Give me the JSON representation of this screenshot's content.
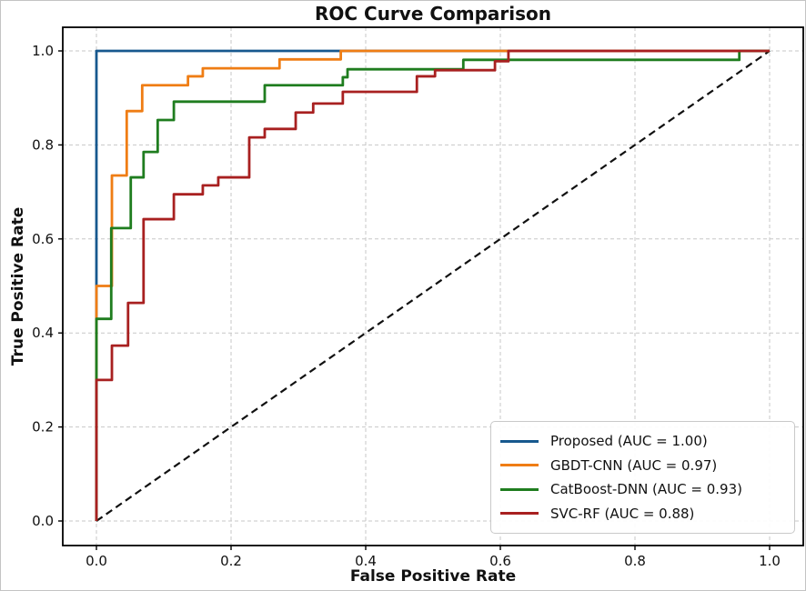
{
  "chart_data": {
    "type": "line",
    "subtype": "roc-step-curves",
    "title": "ROC Curve Comparison",
    "xlabel": "False Positive Rate",
    "ylabel": "True Positive Rate",
    "xlim": [
      0,
      1
    ],
    "ylim": [
      0,
      1
    ],
    "grid": true,
    "grid_style": "dashed",
    "legend_position": "lower right",
    "xticks": [
      "0.0",
      "0.2",
      "0.4",
      "0.6",
      "0.8",
      "1.0"
    ],
    "yticks": [
      "0.0",
      "0.2",
      "0.4",
      "0.6",
      "0.8",
      "1.0"
    ],
    "xtick_values": [
      0,
      0.2,
      0.4,
      0.6,
      0.8,
      1.0
    ],
    "ytick_values": [
      0,
      0.2,
      0.4,
      0.6,
      0.8,
      1.0
    ],
    "series": [
      {
        "name": "Proposed",
        "auc": "1.00",
        "legend_label": "Proposed (AUC = 1.00)",
        "color": "#17588e",
        "points": [
          [
            0,
            0
          ],
          [
            0,
            1
          ],
          [
            1,
            1
          ]
        ]
      },
      {
        "name": "GBDT-CNN",
        "auc": "0.97",
        "legend_label": "GBDT-CNN (AUC = 0.97)",
        "color": "#ef7d14",
        "points": [
          [
            0,
            0
          ],
          [
            0,
            0.5
          ],
          [
            0.023,
            0.5
          ],
          [
            0.023,
            0.735
          ],
          [
            0.045,
            0.735
          ],
          [
            0.045,
            0.872
          ],
          [
            0.068,
            0.872
          ],
          [
            0.068,
            0.927
          ],
          [
            0.136,
            0.927
          ],
          [
            0.136,
            0.946
          ],
          [
            0.158,
            0.946
          ],
          [
            0.158,
            0.963
          ],
          [
            0.272,
            0.963
          ],
          [
            0.272,
            0.982
          ],
          [
            0.363,
            0.982
          ],
          [
            0.363,
            1
          ],
          [
            1,
            1
          ]
        ]
      },
      {
        "name": "CatBoost-DNN",
        "auc": "0.93",
        "legend_label": "CatBoost-DNN (AUC = 0.93)",
        "color": "#1f7d1f",
        "points": [
          [
            0,
            0
          ],
          [
            0,
            0.43
          ],
          [
            0.022,
            0.43
          ],
          [
            0.022,
            0.623
          ],
          [
            0.051,
            0.623
          ],
          [
            0.051,
            0.731
          ],
          [
            0.07,
            0.731
          ],
          [
            0.07,
            0.785
          ],
          [
            0.091,
            0.785
          ],
          [
            0.091,
            0.853
          ],
          [
            0.115,
            0.853
          ],
          [
            0.115,
            0.892
          ],
          [
            0.25,
            0.892
          ],
          [
            0.25,
            0.927
          ],
          [
            0.366,
            0.927
          ],
          [
            0.366,
            0.944
          ],
          [
            0.373,
            0.944
          ],
          [
            0.373,
            0.961
          ],
          [
            0.545,
            0.961
          ],
          [
            0.545,
            0.981
          ],
          [
            0.955,
            0.981
          ],
          [
            0.955,
            1
          ],
          [
            1,
            1
          ]
        ]
      },
      {
        "name": "SVC-RF",
        "auc": "0.88",
        "legend_label": "SVC-RF (AUC = 0.88)",
        "color": "#a82020",
        "points": [
          [
            0,
            0
          ],
          [
            0,
            0.3
          ],
          [
            0.023,
            0.3
          ],
          [
            0.023,
            0.373
          ],
          [
            0.047,
            0.373
          ],
          [
            0.047,
            0.464
          ],
          [
            0.07,
            0.464
          ],
          [
            0.07,
            0.642
          ],
          [
            0.115,
            0.642
          ],
          [
            0.115,
            0.695
          ],
          [
            0.158,
            0.695
          ],
          [
            0.158,
            0.714
          ],
          [
            0.181,
            0.714
          ],
          [
            0.181,
            0.731
          ],
          [
            0.227,
            0.731
          ],
          [
            0.227,
            0.816
          ],
          [
            0.25,
            0.816
          ],
          [
            0.25,
            0.834
          ],
          [
            0.296,
            0.834
          ],
          [
            0.296,
            0.869
          ],
          [
            0.322,
            0.869
          ],
          [
            0.322,
            0.888
          ],
          [
            0.366,
            0.888
          ],
          [
            0.366,
            0.913
          ],
          [
            0.476,
            0.913
          ],
          [
            0.476,
            0.946
          ],
          [
            0.503,
            0.946
          ],
          [
            0.503,
            0.959
          ],
          [
            0.592,
            0.959
          ],
          [
            0.592,
            0.978
          ],
          [
            0.612,
            0.978
          ],
          [
            0.612,
            1
          ],
          [
            1,
            1
          ]
        ]
      }
    ],
    "reference_line": {
      "name": "chance-diagonal",
      "style": "dashed",
      "color": "#111111",
      "points": [
        [
          0,
          0
        ],
        [
          1,
          1
        ]
      ]
    },
    "colors": {
      "grid": "#c7c7c7",
      "spine": "#000000",
      "tick_label": "#111111"
    }
  }
}
